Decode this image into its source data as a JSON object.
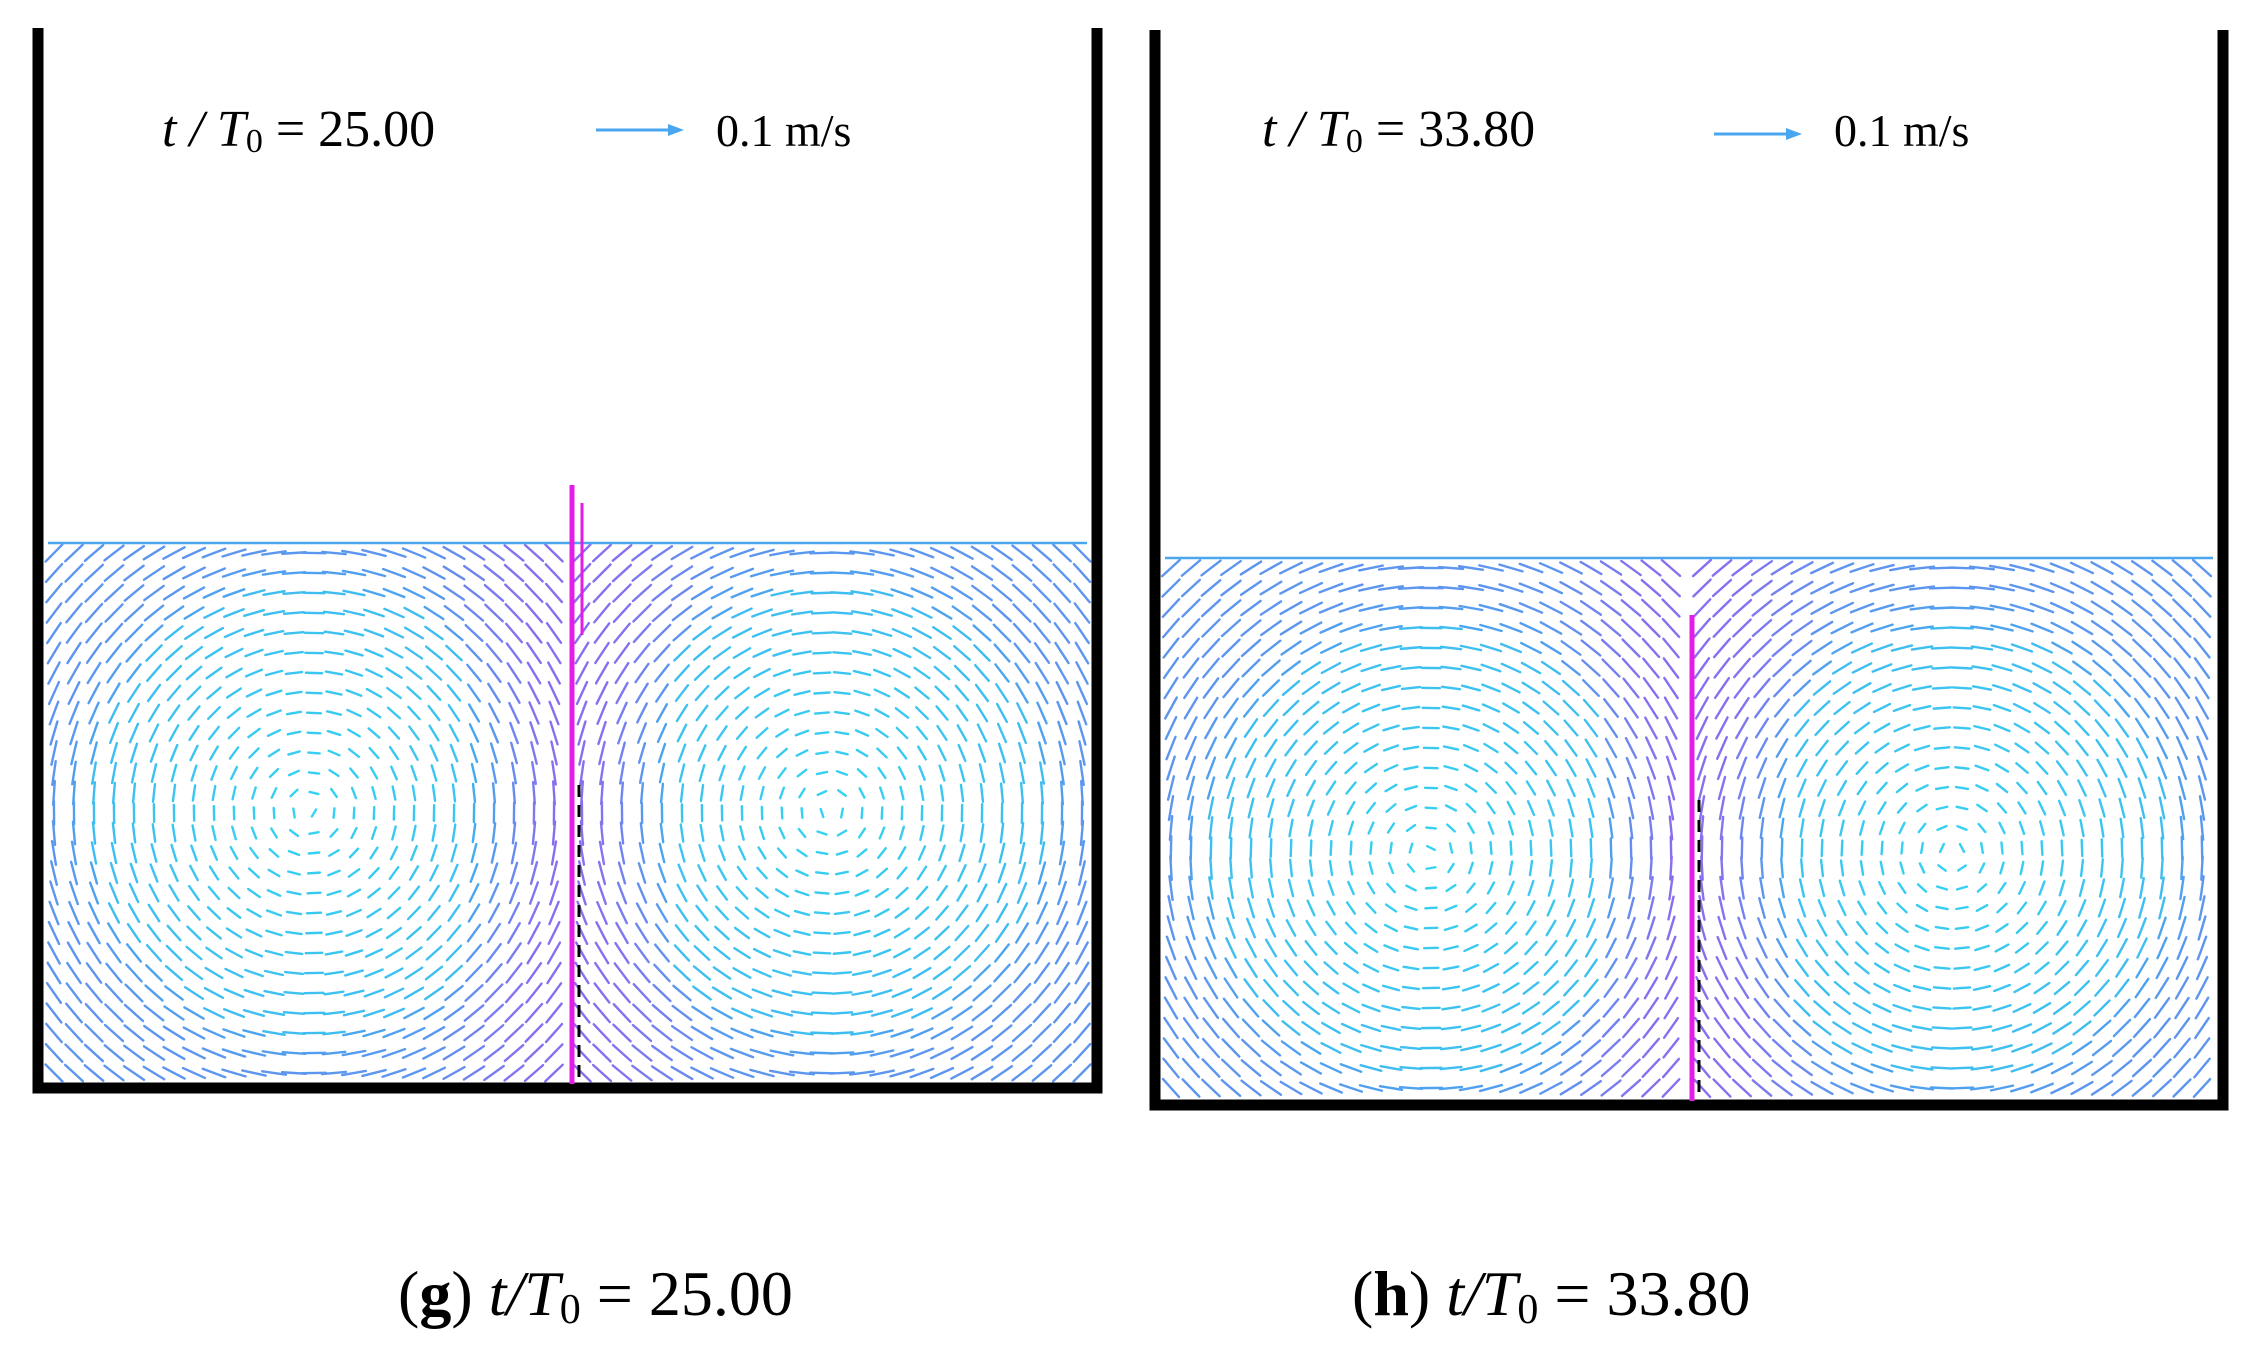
{
  "colors": {
    "wall": "#000000",
    "vector_light": "#34d4f2",
    "vector_mid": "#4aa6ef",
    "vector_dark": "#8a6ef0",
    "baffle": "#e21ee6",
    "baffle_line": "#000000"
  },
  "panels": [
    {
      "id": "g",
      "time_var": "t / T",
      "time_sub": "0",
      "time_value": " = 25.00",
      "reference_arrow_label": "0.1 m/s",
      "caption_letter": "g",
      "caption_var": "t/T",
      "caption_sub": "0",
      "caption_value": " = 25.00",
      "vortex_left": [
        0.28,
        0.5
      ],
      "vortex_right": [
        0.72,
        0.5
      ]
    },
    {
      "id": "h",
      "time_var": "t / T",
      "time_sub": "0",
      "time_value": " = 33.80",
      "reference_arrow_label": "0.1 m/s",
      "caption_letter": "h",
      "caption_var": "t/T",
      "caption_sub": "0",
      "caption_value": " = 33.80",
      "vortex_left": [
        0.3,
        0.55
      ],
      "vortex_right": [
        0.7,
        0.55
      ]
    }
  ]
}
